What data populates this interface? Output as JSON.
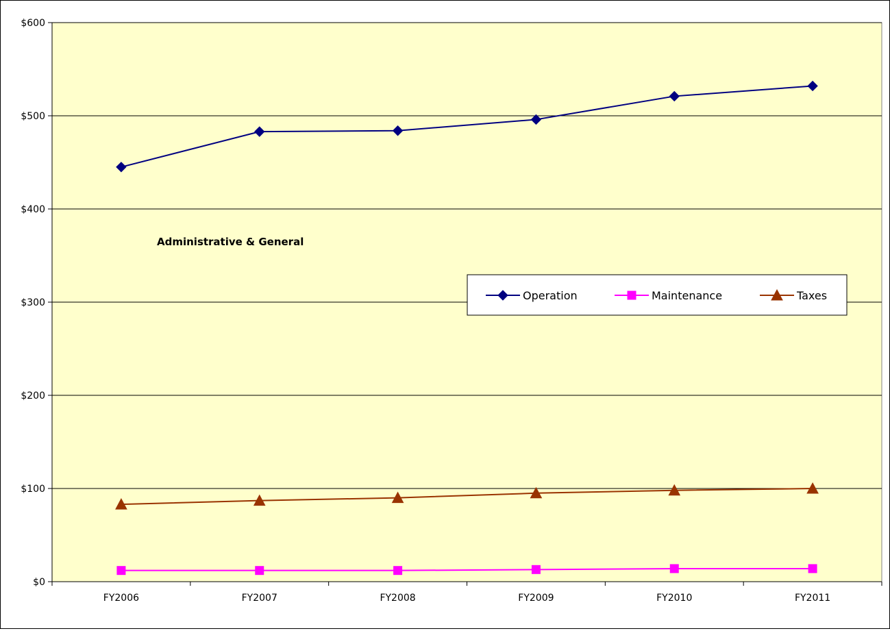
{
  "chart_data": {
    "type": "line",
    "title": "",
    "annotation": "Administrative & General",
    "categories": [
      "FY2006",
      "FY2007",
      "FY2008",
      "FY2009",
      "FY2010",
      "FY2011"
    ],
    "series": [
      {
        "name": "Operation",
        "values": [
          445,
          483,
          484,
          496,
          521,
          532
        ],
        "color": "#000080",
        "marker": "diamond"
      },
      {
        "name": "Maintenance",
        "values": [
          12,
          12,
          12,
          13,
          14,
          14
        ],
        "color": "#FF00FF",
        "marker": "square"
      },
      {
        "name": "Taxes",
        "values": [
          83,
          87,
          90,
          95,
          98,
          100
        ],
        "color": "#993300",
        "marker": "triangle"
      }
    ],
    "ylim": [
      0,
      600
    ],
    "yticks": [
      0,
      100,
      200,
      300,
      400,
      500,
      600
    ],
    "ytick_labels": [
      "$0",
      "$100",
      "$200",
      "$300",
      "$400",
      "$500",
      "$600"
    ],
    "xlabel": "",
    "ylabel": "",
    "grid": true,
    "legend_position": "center-right",
    "plot_background": "#FFFFCC"
  }
}
